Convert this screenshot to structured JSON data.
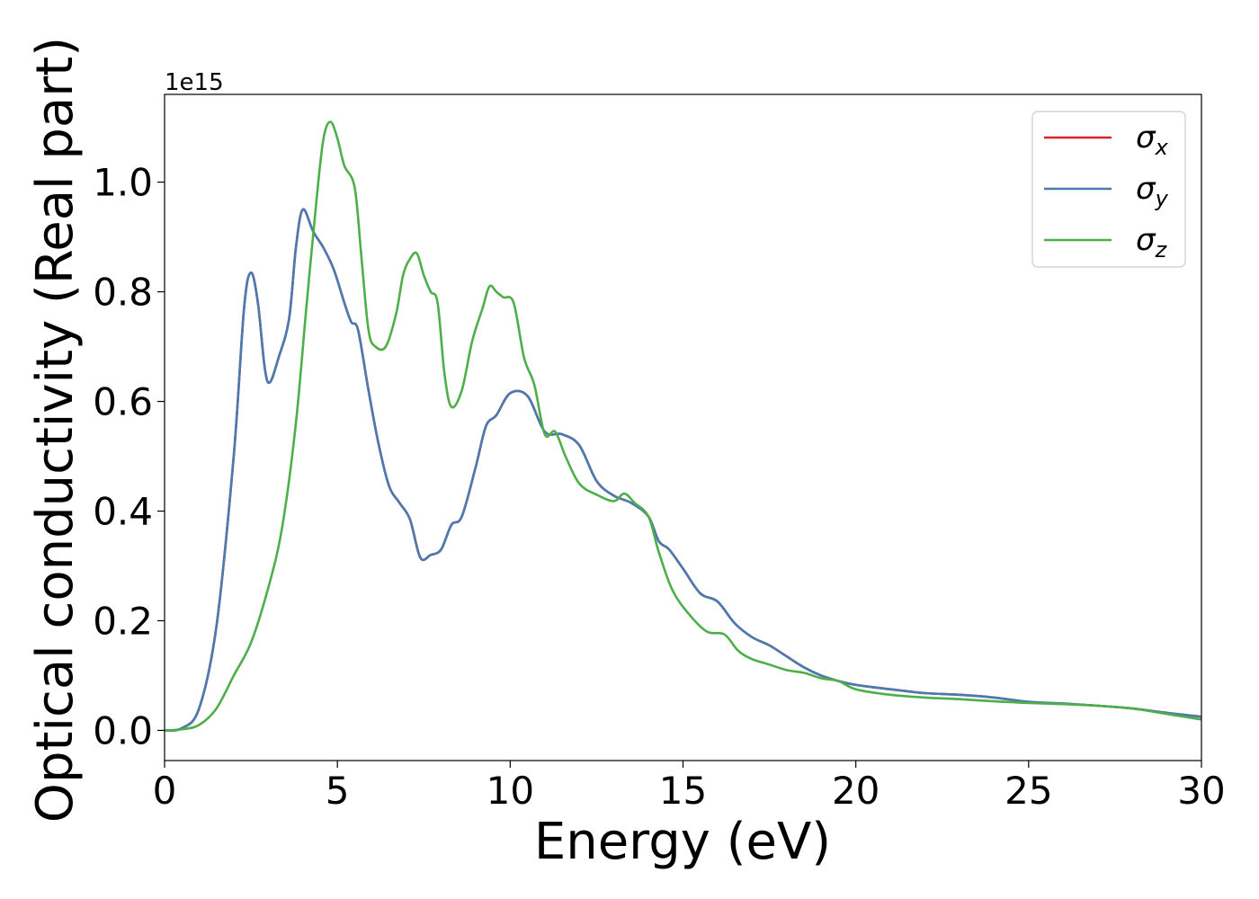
{
  "chart_data": {
    "type": "line",
    "xlabel": "Energy (eV)",
    "ylabel": "Optical conductivity (Real part)",
    "offset_text": "1e15",
    "xlim": [
      0,
      30
    ],
    "ylim": [
      -0.055,
      1.16
    ],
    "x_ticks": [
      0,
      5,
      10,
      15,
      20,
      25,
      30
    ],
    "x_tick_labels": [
      "0",
      "5",
      "10",
      "15",
      "20",
      "25",
      "30"
    ],
    "y_ticks": [
      0.0,
      0.2,
      0.4,
      0.6,
      0.8,
      1.0
    ],
    "y_tick_labels": [
      "0.0",
      "0.2",
      "0.4",
      "0.6",
      "0.8",
      "1.0"
    ],
    "grid": false,
    "legend_position": "top-right",
    "series": [
      {
        "name": "σx",
        "legend_base": "σ",
        "legend_sub": "x",
        "color": "#d62728",
        "points": [
          [
            0,
            0
          ],
          [
            0.5,
            0.004
          ],
          [
            1.0,
            0.04
          ],
          [
            1.5,
            0.19
          ],
          [
            2.0,
            0.5
          ],
          [
            2.3,
            0.77
          ],
          [
            2.5,
            0.835
          ],
          [
            2.7,
            0.78
          ],
          [
            2.9,
            0.66
          ],
          [
            3.05,
            0.635
          ],
          [
            3.3,
            0.68
          ],
          [
            3.6,
            0.75
          ],
          [
            3.8,
            0.88
          ],
          [
            4.0,
            0.95
          ],
          [
            4.3,
            0.91
          ],
          [
            4.6,
            0.88
          ],
          [
            4.9,
            0.84
          ],
          [
            5.2,
            0.78
          ],
          [
            5.4,
            0.745
          ],
          [
            5.6,
            0.73
          ],
          [
            5.9,
            0.62
          ],
          [
            6.2,
            0.52
          ],
          [
            6.5,
            0.445
          ],
          [
            6.8,
            0.415
          ],
          [
            7.1,
            0.385
          ],
          [
            7.4,
            0.315
          ],
          [
            7.7,
            0.32
          ],
          [
            8.0,
            0.33
          ],
          [
            8.3,
            0.375
          ],
          [
            8.6,
            0.39
          ],
          [
            9.0,
            0.48
          ],
          [
            9.3,
            0.555
          ],
          [
            9.6,
            0.575
          ],
          [
            10.0,
            0.615
          ],
          [
            10.5,
            0.61
          ],
          [
            11.0,
            0.545
          ],
          [
            11.5,
            0.54
          ],
          [
            12.0,
            0.52
          ],
          [
            12.5,
            0.455
          ],
          [
            13.0,
            0.428
          ],
          [
            13.5,
            0.415
          ],
          [
            14.0,
            0.39
          ],
          [
            14.3,
            0.345
          ],
          [
            14.6,
            0.33
          ],
          [
            15.0,
            0.295
          ],
          [
            15.5,
            0.25
          ],
          [
            16.0,
            0.235
          ],
          [
            16.5,
            0.195
          ],
          [
            17.0,
            0.17
          ],
          [
            17.5,
            0.155
          ],
          [
            18.0,
            0.135
          ],
          [
            18.5,
            0.115
          ],
          [
            19.0,
            0.1
          ],
          [
            19.5,
            0.09
          ],
          [
            20.0,
            0.083
          ],
          [
            21.0,
            0.075
          ],
          [
            22.0,
            0.068
          ],
          [
            23.0,
            0.065
          ],
          [
            24.0,
            0.06
          ],
          [
            25.0,
            0.052
          ],
          [
            26.0,
            0.049
          ],
          [
            27.0,
            0.045
          ],
          [
            28.0,
            0.04
          ],
          [
            29.0,
            0.032
          ],
          [
            30.0,
            0.025
          ]
        ]
      },
      {
        "name": "σy",
        "legend_base": "σ",
        "legend_sub": "y",
        "color": "#4a7ab0",
        "points": [
          [
            0,
            0
          ],
          [
            0.5,
            0.004
          ],
          [
            1.0,
            0.04
          ],
          [
            1.5,
            0.19
          ],
          [
            2.0,
            0.5
          ],
          [
            2.3,
            0.77
          ],
          [
            2.5,
            0.835
          ],
          [
            2.7,
            0.78
          ],
          [
            2.9,
            0.66
          ],
          [
            3.05,
            0.635
          ],
          [
            3.3,
            0.68
          ],
          [
            3.6,
            0.75
          ],
          [
            3.8,
            0.88
          ],
          [
            4.0,
            0.95
          ],
          [
            4.3,
            0.91
          ],
          [
            4.6,
            0.88
          ],
          [
            4.9,
            0.84
          ],
          [
            5.2,
            0.78
          ],
          [
            5.4,
            0.745
          ],
          [
            5.6,
            0.73
          ],
          [
            5.9,
            0.62
          ],
          [
            6.2,
            0.52
          ],
          [
            6.5,
            0.445
          ],
          [
            6.8,
            0.415
          ],
          [
            7.1,
            0.385
          ],
          [
            7.4,
            0.315
          ],
          [
            7.7,
            0.32
          ],
          [
            8.0,
            0.33
          ],
          [
            8.3,
            0.375
          ],
          [
            8.6,
            0.39
          ],
          [
            9.0,
            0.48
          ],
          [
            9.3,
            0.555
          ],
          [
            9.6,
            0.575
          ],
          [
            10.0,
            0.615
          ],
          [
            10.5,
            0.61
          ],
          [
            11.0,
            0.545
          ],
          [
            11.5,
            0.54
          ],
          [
            12.0,
            0.52
          ],
          [
            12.5,
            0.455
          ],
          [
            13.0,
            0.428
          ],
          [
            13.5,
            0.415
          ],
          [
            14.0,
            0.39
          ],
          [
            14.3,
            0.345
          ],
          [
            14.6,
            0.33
          ],
          [
            15.0,
            0.295
          ],
          [
            15.5,
            0.25
          ],
          [
            16.0,
            0.235
          ],
          [
            16.5,
            0.195
          ],
          [
            17.0,
            0.17
          ],
          [
            17.5,
            0.155
          ],
          [
            18.0,
            0.135
          ],
          [
            18.5,
            0.115
          ],
          [
            19.0,
            0.1
          ],
          [
            19.5,
            0.09
          ],
          [
            20.0,
            0.083
          ],
          [
            21.0,
            0.075
          ],
          [
            22.0,
            0.068
          ],
          [
            23.0,
            0.065
          ],
          [
            24.0,
            0.06
          ],
          [
            25.0,
            0.052
          ],
          [
            26.0,
            0.049
          ],
          [
            27.0,
            0.045
          ],
          [
            28.0,
            0.04
          ],
          [
            29.0,
            0.032
          ],
          [
            30.0,
            0.025
          ]
        ]
      },
      {
        "name": "σz",
        "legend_base": "σ",
        "legend_sub": "z",
        "color": "#4daf4a",
        "points": [
          [
            0,
            0
          ],
          [
            0.5,
            0.002
          ],
          [
            1.0,
            0.01
          ],
          [
            1.5,
            0.04
          ],
          [
            2.0,
            0.1
          ],
          [
            2.5,
            0.16
          ],
          [
            3.0,
            0.26
          ],
          [
            3.4,
            0.37
          ],
          [
            3.8,
            0.56
          ],
          [
            4.1,
            0.77
          ],
          [
            4.4,
            0.97
          ],
          [
            4.6,
            1.08
          ],
          [
            4.8,
            1.11
          ],
          [
            5.0,
            1.08
          ],
          [
            5.2,
            1.03
          ],
          [
            5.5,
            0.99
          ],
          [
            5.7,
            0.86
          ],
          [
            5.9,
            0.73
          ],
          [
            6.1,
            0.7
          ],
          [
            6.4,
            0.7
          ],
          [
            6.7,
            0.76
          ],
          [
            6.9,
            0.83
          ],
          [
            7.1,
            0.86
          ],
          [
            7.3,
            0.87
          ],
          [
            7.5,
            0.83
          ],
          [
            7.7,
            0.8
          ],
          [
            7.9,
            0.78
          ],
          [
            8.1,
            0.65
          ],
          [
            8.3,
            0.59
          ],
          [
            8.6,
            0.62
          ],
          [
            8.9,
            0.71
          ],
          [
            9.2,
            0.77
          ],
          [
            9.4,
            0.81
          ],
          [
            9.6,
            0.8
          ],
          [
            9.8,
            0.79
          ],
          [
            10.1,
            0.78
          ],
          [
            10.4,
            0.68
          ],
          [
            10.7,
            0.63
          ],
          [
            11.0,
            0.54
          ],
          [
            11.3,
            0.545
          ],
          [
            11.6,
            0.5
          ],
          [
            12.0,
            0.45
          ],
          [
            12.5,
            0.43
          ],
          [
            13.0,
            0.418
          ],
          [
            13.3,
            0.432
          ],
          [
            13.6,
            0.415
          ],
          [
            14.0,
            0.39
          ],
          [
            14.3,
            0.325
          ],
          [
            14.7,
            0.255
          ],
          [
            15.2,
            0.21
          ],
          [
            15.7,
            0.18
          ],
          [
            16.2,
            0.175
          ],
          [
            16.6,
            0.145
          ],
          [
            17.0,
            0.13
          ],
          [
            17.5,
            0.12
          ],
          [
            18.0,
            0.11
          ],
          [
            18.5,
            0.105
          ],
          [
            19.0,
            0.095
          ],
          [
            19.5,
            0.09
          ],
          [
            20.0,
            0.075
          ],
          [
            21.0,
            0.065
          ],
          [
            22.0,
            0.06
          ],
          [
            23.0,
            0.057
          ],
          [
            24.0,
            0.053
          ],
          [
            25.0,
            0.05
          ],
          [
            26.0,
            0.048
          ],
          [
            27.0,
            0.045
          ],
          [
            28.0,
            0.04
          ],
          [
            29.0,
            0.03
          ],
          [
            30.0,
            0.02
          ]
        ]
      }
    ]
  }
}
